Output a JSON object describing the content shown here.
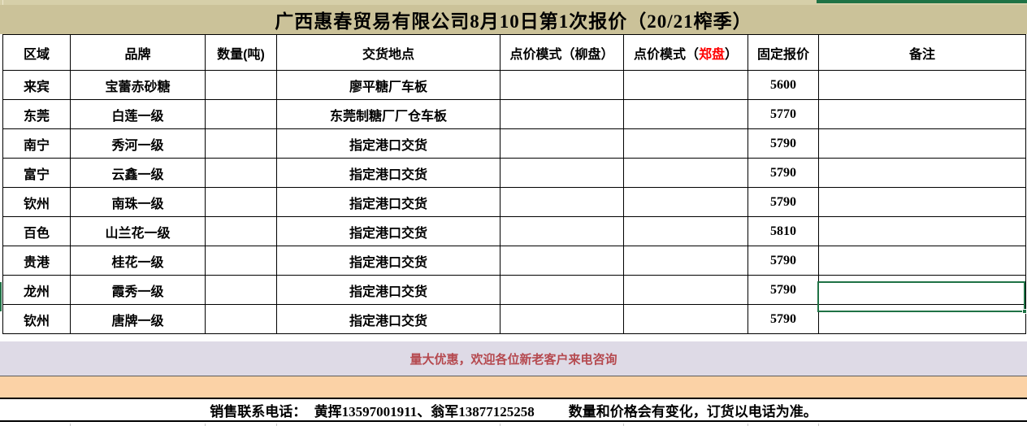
{
  "title": "广西惠春贸易有限公司8月10日第1次报价（20/21榨季）",
  "table": {
    "headers": {
      "region": "区域",
      "brand": "品牌",
      "qty": "数量(吨)",
      "location": "交货地点",
      "liupan": "点价模式（柳盘）",
      "zhengpan_pre": "点价模式（",
      "zhengpan_red": "郑盘",
      "zhengpan_post": "）",
      "fixed_price": "固定报价",
      "note": "备注"
    },
    "rows": [
      {
        "region": "来宾",
        "brand": "宝蕾赤砂糖",
        "qty": "",
        "location": "廖平糖厂车板",
        "liupan": "",
        "zhengpan": "",
        "price": "5600",
        "note": ""
      },
      {
        "region": "东莞",
        "brand": "白莲一级",
        "qty": "",
        "location": "东莞制糖厂厂仓车板",
        "liupan": "",
        "zhengpan": "",
        "price": "5770",
        "note": ""
      },
      {
        "region": "南宁",
        "brand": "秀河一级",
        "qty": "",
        "location": "指定港口交货",
        "liupan": "",
        "zhengpan": "",
        "price": "5790",
        "note": ""
      },
      {
        "region": "富宁",
        "brand": "云鑫一级",
        "qty": "",
        "location": "指定港口交货",
        "liupan": "",
        "zhengpan": "",
        "price": "5790",
        "note": ""
      },
      {
        "region": "钦州",
        "brand": "南珠一级",
        "qty": "",
        "location": "指定港口交货",
        "liupan": "",
        "zhengpan": "",
        "price": "5790",
        "note": ""
      },
      {
        "region": "百色",
        "brand": "山兰花一级",
        "qty": "",
        "location": "指定港口交货",
        "liupan": "",
        "zhengpan": "",
        "price": "5810",
        "note": ""
      },
      {
        "region": "贵港",
        "brand": "桂花一级",
        "qty": "",
        "location": "指定港口交货",
        "liupan": "",
        "zhengpan": "",
        "price": "5790",
        "note": ""
      },
      {
        "region": "龙州",
        "brand": "霞秀一级",
        "qty": "",
        "location": "指定港口交货",
        "liupan": "",
        "zhengpan": "",
        "price": "5790",
        "note": ""
      },
      {
        "region": "钦州",
        "brand": "唐牌一级",
        "qty": "",
        "location": "指定港口交货",
        "liupan": "",
        "zhengpan": "",
        "price": "5790",
        "note": ""
      }
    ]
  },
  "banner": {
    "promo": "量大优惠，欢迎各位新老客户来电咨询"
  },
  "footer": {
    "label": "销售联系电话：  ",
    "phones": "黄挥13597001911、翁军13877125258",
    "note": "数量和价格会有变化，订货以电话为准。"
  },
  "selection": {
    "selected_row_region": "龙州",
    "selected_column": "备注"
  },
  "colors": {
    "title_bg": "#CBC299",
    "banner_bg": "#DEDAE6",
    "banner_text": "#B5494F",
    "peach_bg": "#FBD2A6",
    "selection_green": "#1F7245",
    "header_red": "#FF0000"
  }
}
